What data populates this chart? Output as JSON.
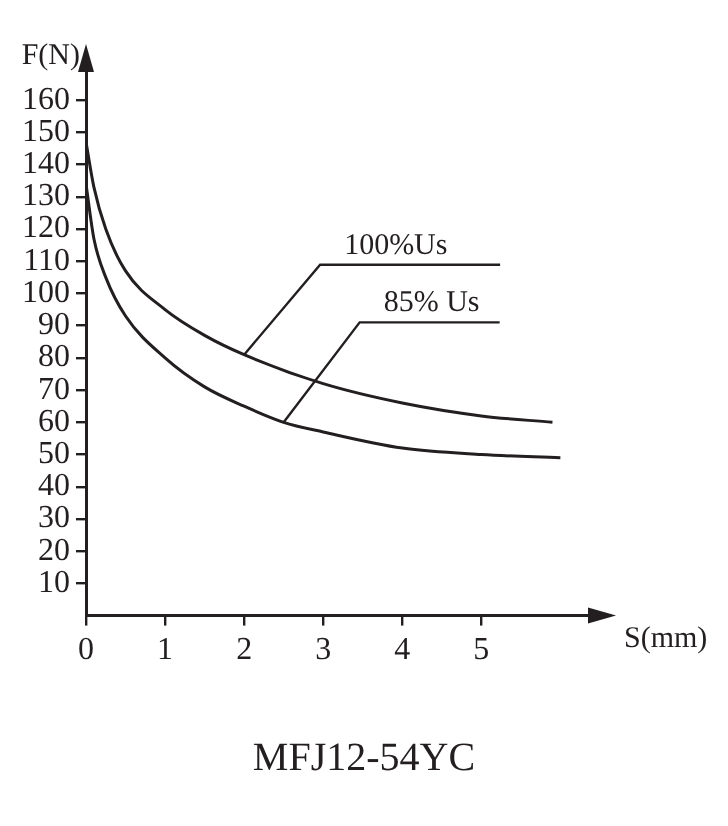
{
  "chart_data": {
    "type": "line",
    "title": "MFJ12-54YC",
    "xlabel": "S(mm)",
    "ylabel": "F(N)",
    "xlim": [
      0,
      6.4
    ],
    "xticks": [
      0,
      1,
      2,
      3,
      4,
      5
    ],
    "ylim": [
      0,
      170
    ],
    "yticks": [
      10,
      20,
      30,
      40,
      50,
      60,
      70,
      80,
      90,
      100,
      110,
      120,
      130,
      140,
      150,
      160
    ],
    "grid": false,
    "legend": false,
    "marker": "none",
    "line_style": "solid",
    "annotations": [
      {
        "text": "100%Us",
        "x": 2,
        "y": 81
      },
      {
        "text": "85% Us",
        "x": 2.5,
        "y": 60
      }
    ],
    "series": [
      {
        "color": "#231f20",
        "x": [
          0,
          0.1,
          0.25,
          0.5,
          1,
          1.5,
          2,
          3,
          4,
          5,
          5.9
        ],
        "values": [
          147,
          133,
          120,
          107,
          95,
          87,
          81,
          72,
          66,
          62,
          60
        ]
      },
      {
        "color": "#231f20",
        "x": [
          0,
          0.1,
          0.25,
          0.5,
          1,
          1.5,
          2,
          2.5,
          3,
          4,
          5,
          6
        ],
        "values": [
          134,
          117,
          105,
          93,
          80,
          71,
          65,
          60,
          57,
          52,
          50,
          49
        ]
      }
    ]
  }
}
